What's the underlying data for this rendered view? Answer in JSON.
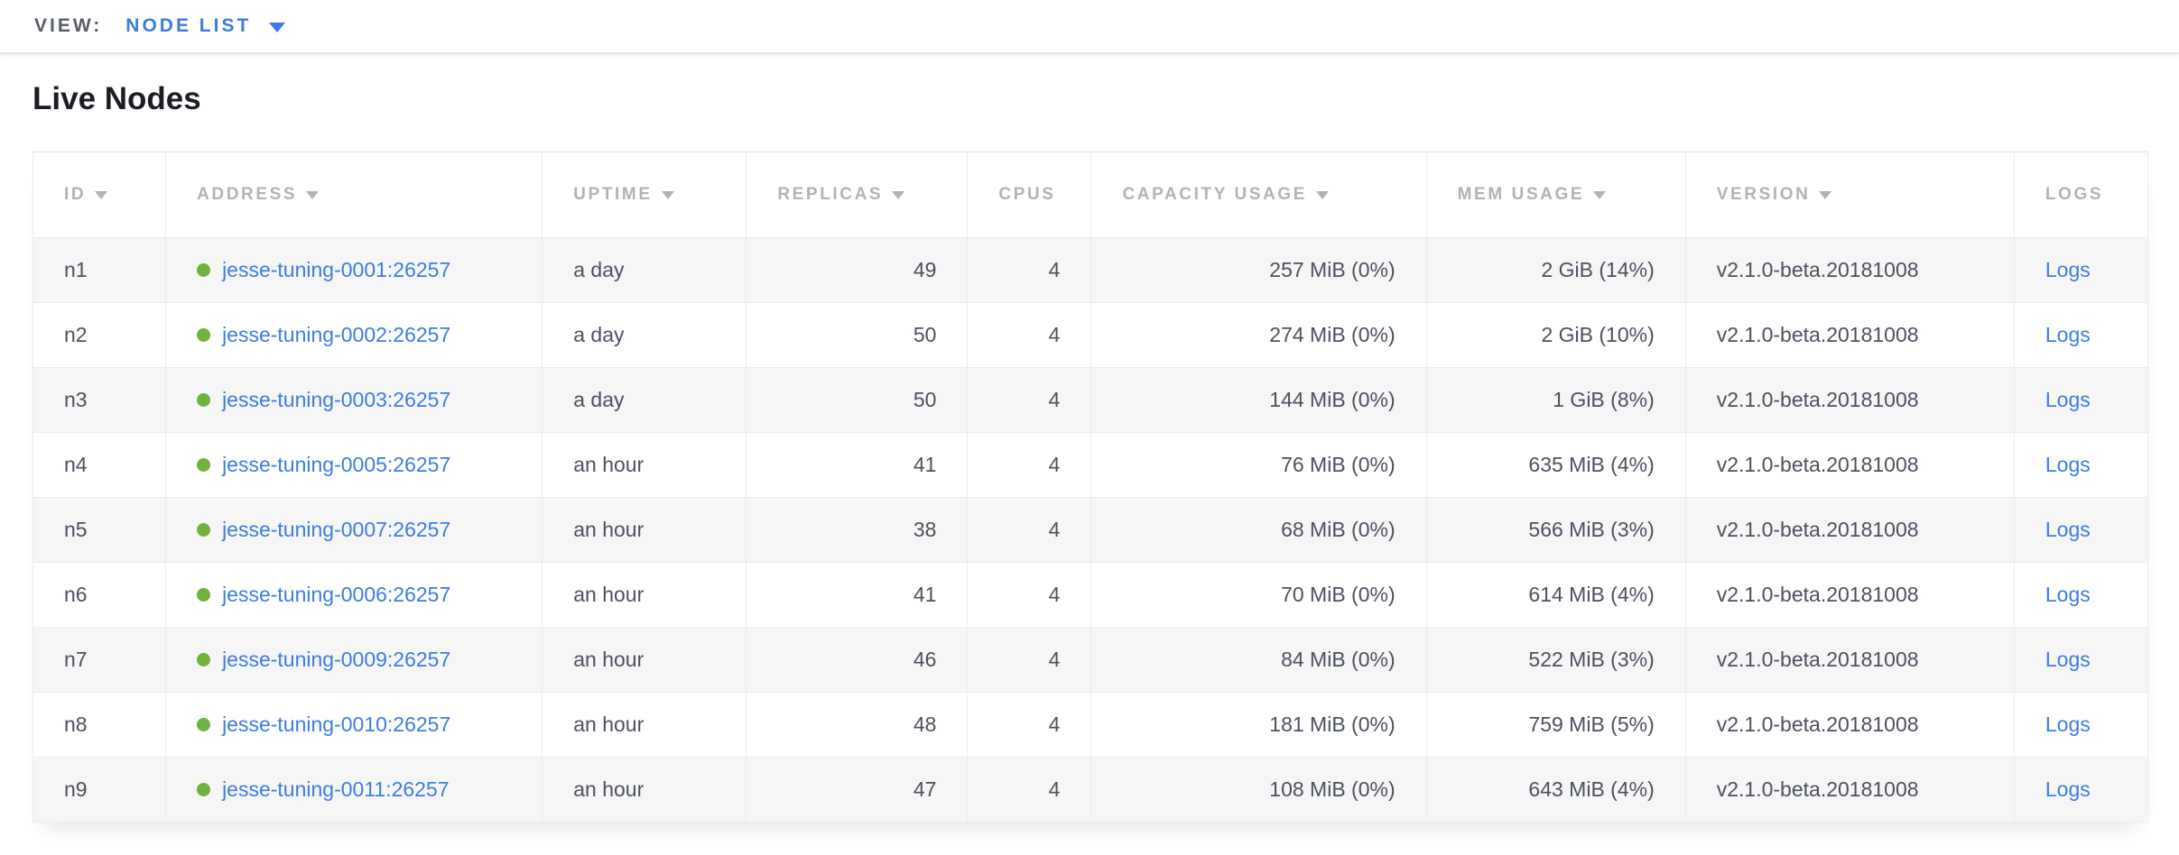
{
  "view_bar": {
    "label": "VIEW:",
    "selected": "NODE LIST"
  },
  "page": {
    "title": "Live Nodes"
  },
  "table": {
    "columns": [
      {
        "key": "id",
        "label": "ID",
        "sortable": true,
        "align": "left"
      },
      {
        "key": "address",
        "label": "ADDRESS",
        "sortable": true,
        "align": "left"
      },
      {
        "key": "uptime",
        "label": "UPTIME",
        "sortable": true,
        "align": "left"
      },
      {
        "key": "replicas",
        "label": "REPLICAS",
        "sortable": true,
        "align": "right"
      },
      {
        "key": "cpus",
        "label": "CPUS",
        "sortable": false,
        "align": "right"
      },
      {
        "key": "capacity_usage",
        "label": "CAPACITY USAGE",
        "sortable": true,
        "align": "right"
      },
      {
        "key": "mem_usage",
        "label": "MEM USAGE",
        "sortable": true,
        "align": "right"
      },
      {
        "key": "version",
        "label": "VERSION",
        "sortable": true,
        "align": "left"
      },
      {
        "key": "logs",
        "label": "LOGS",
        "sortable": false,
        "align": "left"
      }
    ],
    "rows": [
      {
        "id": "n1",
        "status": "live",
        "address": "jesse-tuning-0001:26257",
        "uptime": "a day",
        "replicas": "49",
        "cpus": "4",
        "capacity_usage": "257 MiB (0%)",
        "mem_usage": "2 GiB (14%)",
        "version": "v2.1.0-beta.20181008",
        "logs": "Logs"
      },
      {
        "id": "n2",
        "status": "live",
        "address": "jesse-tuning-0002:26257",
        "uptime": "a day",
        "replicas": "50",
        "cpus": "4",
        "capacity_usage": "274 MiB (0%)",
        "mem_usage": "2 GiB (10%)",
        "version": "v2.1.0-beta.20181008",
        "logs": "Logs"
      },
      {
        "id": "n3",
        "status": "live",
        "address": "jesse-tuning-0003:26257",
        "uptime": "a day",
        "replicas": "50",
        "cpus": "4",
        "capacity_usage": "144 MiB (0%)",
        "mem_usage": "1 GiB (8%)",
        "version": "v2.1.0-beta.20181008",
        "logs": "Logs"
      },
      {
        "id": "n4",
        "status": "live",
        "address": "jesse-tuning-0005:26257",
        "uptime": "an hour",
        "replicas": "41",
        "cpus": "4",
        "capacity_usage": "76 MiB (0%)",
        "mem_usage": "635 MiB (4%)",
        "version": "v2.1.0-beta.20181008",
        "logs": "Logs"
      },
      {
        "id": "n5",
        "status": "live",
        "address": "jesse-tuning-0007:26257",
        "uptime": "an hour",
        "replicas": "38",
        "cpus": "4",
        "capacity_usage": "68 MiB (0%)",
        "mem_usage": "566 MiB (3%)",
        "version": "v2.1.0-beta.20181008",
        "logs": "Logs"
      },
      {
        "id": "n6",
        "status": "live",
        "address": "jesse-tuning-0006:26257",
        "uptime": "an hour",
        "replicas": "41",
        "cpus": "4",
        "capacity_usage": "70 MiB (0%)",
        "mem_usage": "614 MiB (4%)",
        "version": "v2.1.0-beta.20181008",
        "logs": "Logs"
      },
      {
        "id": "n7",
        "status": "live",
        "address": "jesse-tuning-0009:26257",
        "uptime": "an hour",
        "replicas": "46",
        "cpus": "4",
        "capacity_usage": "84 MiB (0%)",
        "mem_usage": "522 MiB (3%)",
        "version": "v2.1.0-beta.20181008",
        "logs": "Logs"
      },
      {
        "id": "n8",
        "status": "live",
        "address": "jesse-tuning-0010:26257",
        "uptime": "an hour",
        "replicas": "48",
        "cpus": "4",
        "capacity_usage": "181 MiB (0%)",
        "mem_usage": "759 MiB (5%)",
        "version": "v2.1.0-beta.20181008",
        "logs": "Logs"
      },
      {
        "id": "n9",
        "status": "live",
        "address": "jesse-tuning-0011:26257",
        "uptime": "an hour",
        "replicas": "47",
        "cpus": "4",
        "capacity_usage": "108 MiB (0%)",
        "mem_usage": "643 MiB (4%)",
        "version": "v2.1.0-beta.20181008",
        "logs": "Logs"
      }
    ]
  },
  "colors": {
    "link_blue": "#3d7ce2",
    "view_accent_blue": "#3b7ce2",
    "live_green": "#70b33c",
    "header_gray": "#b1b3b8",
    "body_text": "#4c5160",
    "stripe_bg": "#f6f6f7"
  }
}
